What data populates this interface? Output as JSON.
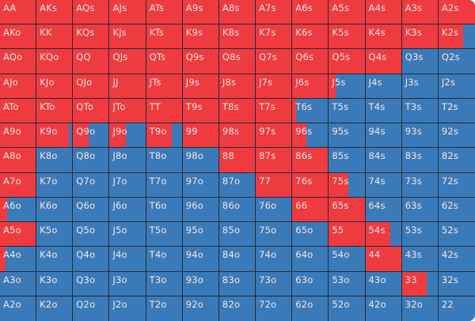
{
  "colors": {
    "action": "#ef3b40",
    "fold": "#3b7ab8"
  },
  "ranks": [
    "A",
    "K",
    "Q",
    "J",
    "T",
    "9",
    "8",
    "7",
    "6",
    "5",
    "4",
    "3",
    "2"
  ],
  "frequencies": [
    [
      1,
      1,
      1,
      1,
      1,
      1,
      1,
      1,
      1,
      1,
      1,
      1,
      1
    ],
    [
      1,
      1,
      1,
      1,
      1,
      1,
      1,
      1,
      1,
      1,
      1,
      1,
      0.68
    ],
    [
      1,
      1,
      1,
      1,
      1,
      1,
      1,
      1,
      1,
      1,
      1,
      0,
      0
    ],
    [
      1,
      1,
      1,
      1,
      1,
      1,
      1,
      1,
      1,
      0.2,
      0,
      0,
      0
    ],
    [
      1,
      1,
      1,
      1,
      1,
      1,
      1,
      1,
      0.1,
      0,
      0,
      0,
      0
    ],
    [
      1,
      0.9,
      0.43,
      0.45,
      0.72,
      1,
      1,
      1,
      0.4,
      0,
      0,
      0,
      0
    ],
    [
      1,
      0,
      0,
      0,
      0,
      0,
      1,
      1,
      1,
      0,
      0,
      0,
      0
    ],
    [
      1,
      0,
      0,
      0,
      0,
      0,
      0,
      1,
      1,
      0.55,
      0,
      0,
      0
    ],
    [
      0.2,
      0,
      0,
      0,
      0,
      0,
      0,
      0,
      1,
      1,
      0,
      0,
      0
    ],
    [
      1,
      0,
      0,
      0,
      0,
      0,
      0,
      0,
      0,
      1,
      0.7,
      0,
      0
    ],
    [
      0.15,
      0,
      0,
      0,
      0,
      0,
      0,
      0,
      0,
      0,
      1,
      0,
      0
    ],
    [
      0,
      0,
      0,
      0,
      0,
      0,
      0,
      0,
      0,
      0,
      0,
      0.7,
      0
    ],
    [
      0,
      0,
      0,
      0,
      0,
      0,
      0,
      0,
      0,
      0,
      0,
      0,
      0
    ]
  ]
}
